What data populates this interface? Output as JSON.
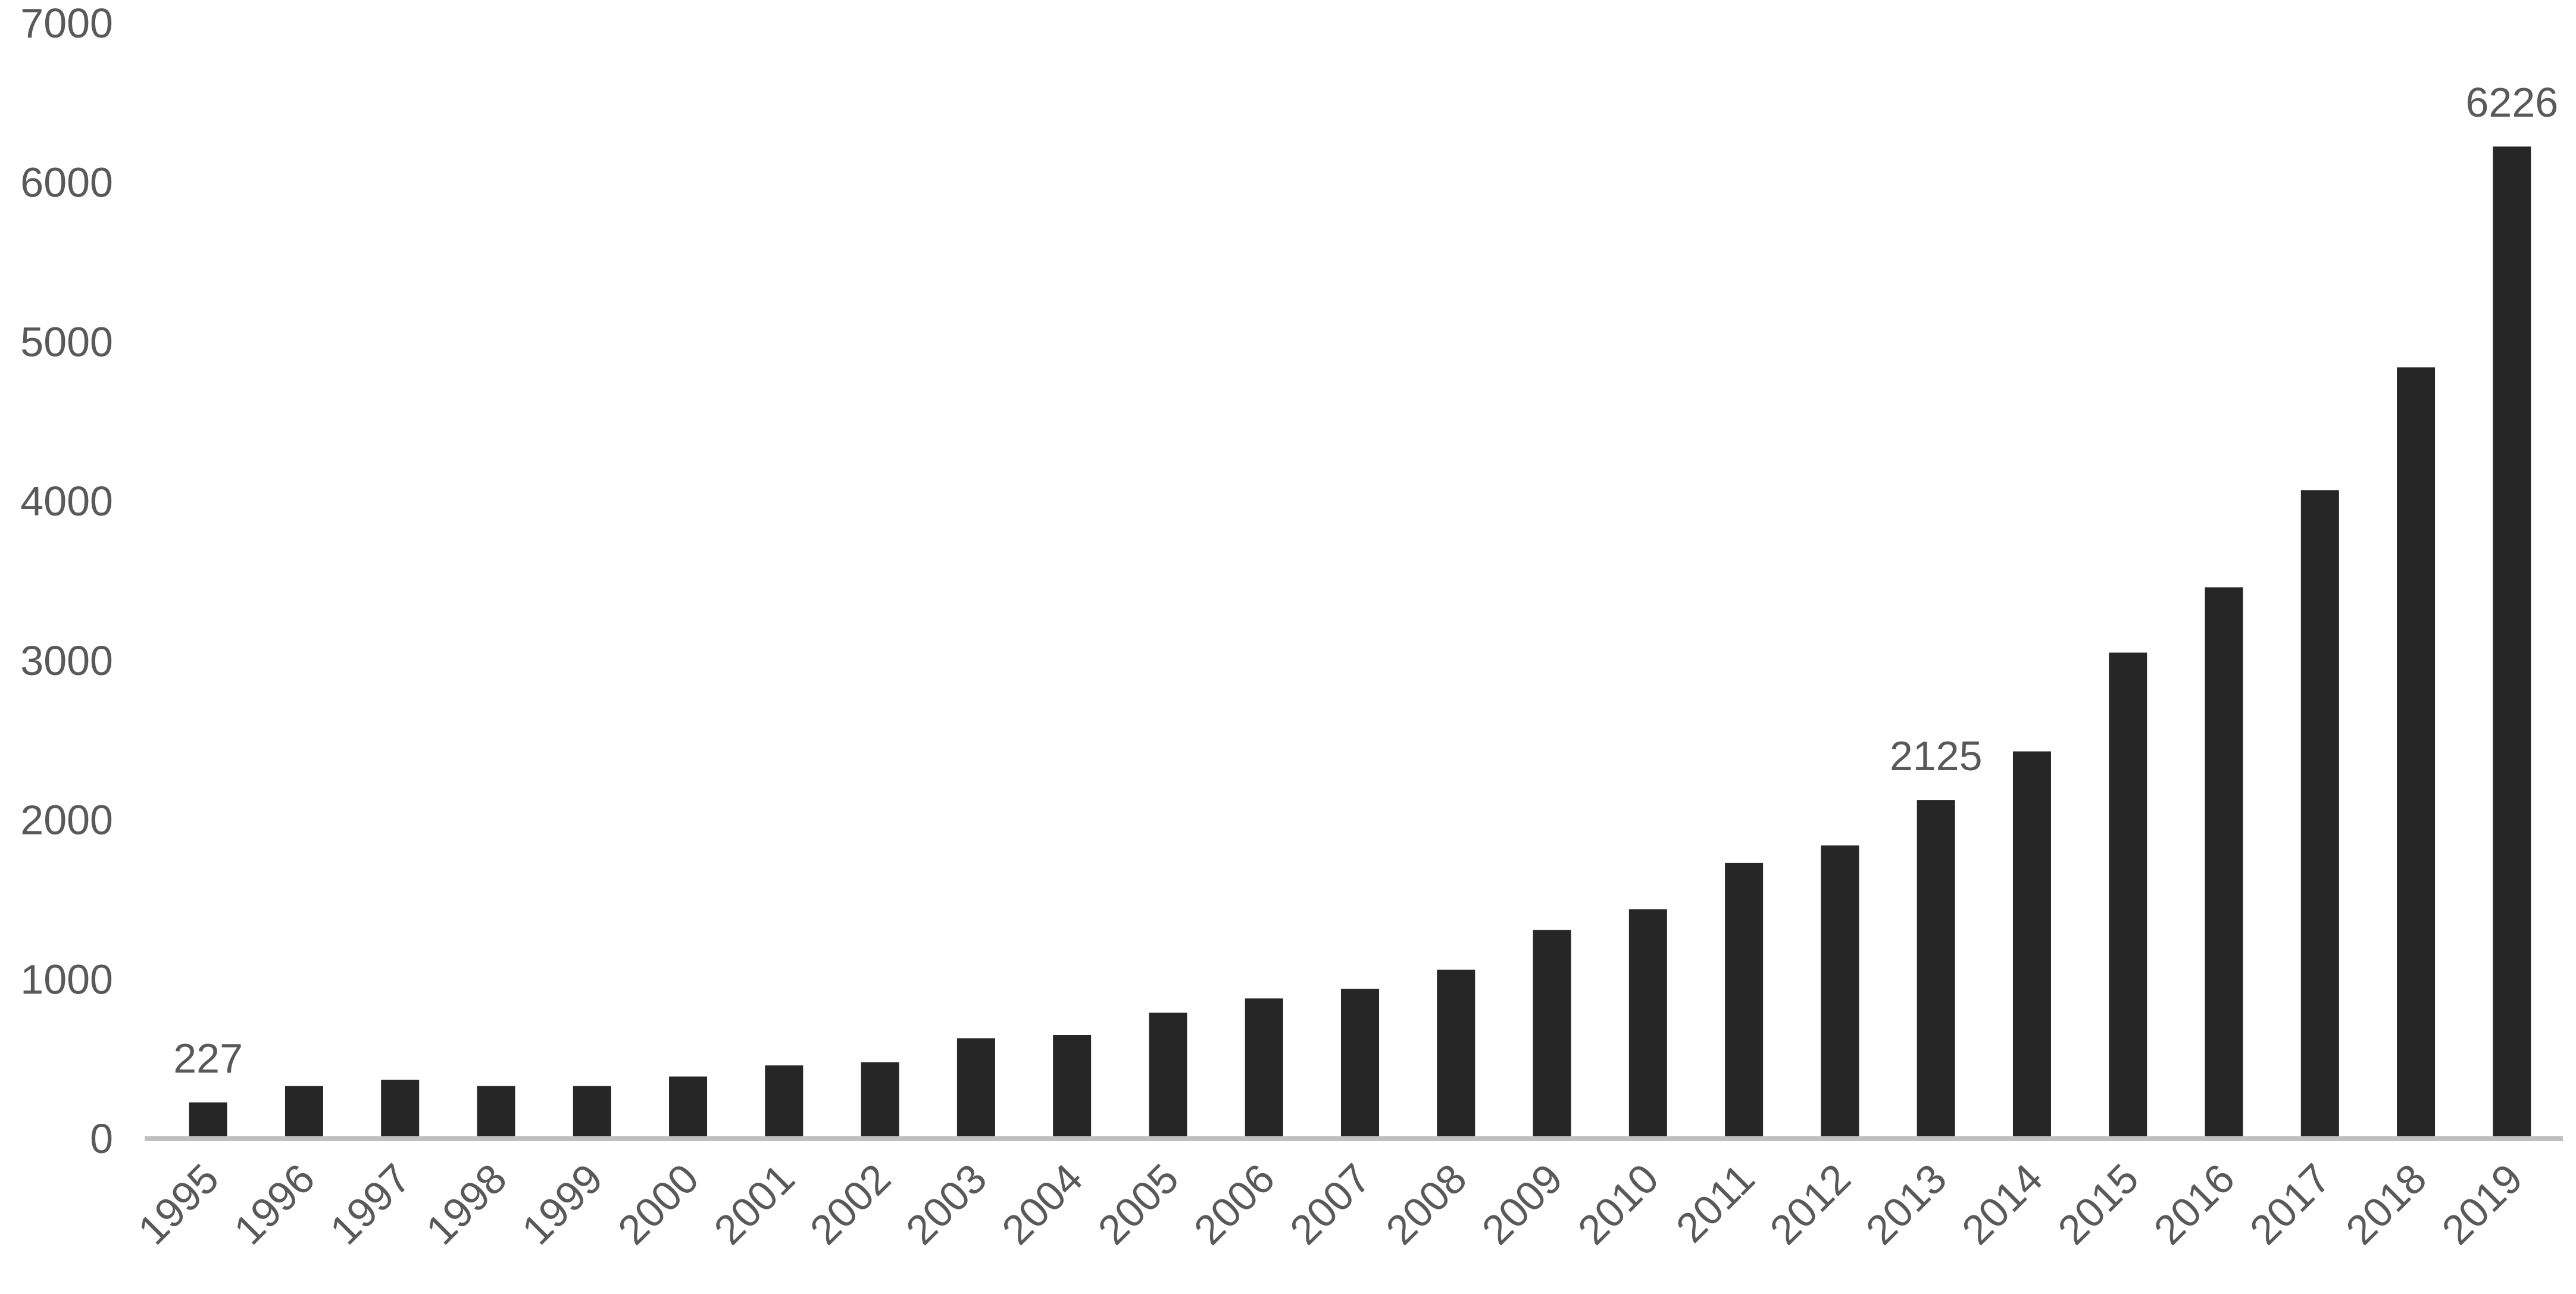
{
  "chart_data": {
    "type": "bar",
    "categories": [
      "1995",
      "1996",
      "1997",
      "1998",
      "1999",
      "2000",
      "2001",
      "2002",
      "2003",
      "2004",
      "2005",
      "2006",
      "2007",
      "2008",
      "2009",
      "2010",
      "2011",
      "2012",
      "2013",
      "2014",
      "2015",
      "2016",
      "2017",
      "2018",
      "2019"
    ],
    "values": [
      227,
      330,
      370,
      330,
      330,
      390,
      460,
      480,
      630,
      650,
      790,
      880,
      940,
      1060,
      1310,
      1440,
      1730,
      1840,
      2125,
      2430,
      3050,
      3460,
      4070,
      4840,
      6226
    ],
    "value_labels": [
      "227",
      null,
      null,
      null,
      null,
      null,
      null,
      null,
      null,
      null,
      null,
      null,
      null,
      null,
      null,
      null,
      null,
      null,
      "2125",
      null,
      null,
      null,
      null,
      null,
      "6226"
    ],
    "color": "#262626",
    "ylim": [
      0,
      7000
    ],
    "yticks": [
      0,
      1000,
      2000,
      3000,
      4000,
      5000,
      6000,
      7000
    ],
    "grid": false
  }
}
